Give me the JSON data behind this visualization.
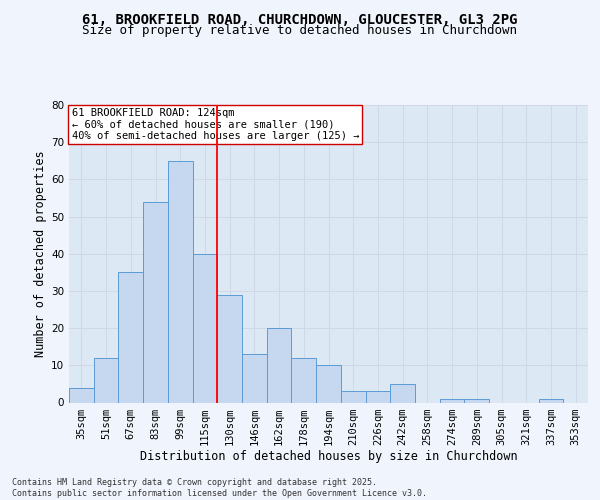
{
  "title_line1": "61, BROOKFIELD ROAD, CHURCHDOWN, GLOUCESTER, GL3 2PG",
  "title_line2": "Size of property relative to detached houses in Churchdown",
  "xlabel": "Distribution of detached houses by size in Churchdown",
  "ylabel": "Number of detached properties",
  "categories": [
    "35sqm",
    "51sqm",
    "67sqm",
    "83sqm",
    "99sqm",
    "115sqm",
    "130sqm",
    "146sqm",
    "162sqm",
    "178sqm",
    "194sqm",
    "210sqm",
    "226sqm",
    "242sqm",
    "258sqm",
    "274sqm",
    "289sqm",
    "305sqm",
    "321sqm",
    "337sqm",
    "353sqm"
  ],
  "values": [
    4,
    12,
    35,
    54,
    65,
    40,
    29,
    13,
    20,
    12,
    10,
    3,
    3,
    5,
    0,
    1,
    1,
    0,
    0,
    1,
    0
  ],
  "bar_color": "#c5d8f0",
  "bar_edge_color": "#5b9bd5",
  "grid_color": "#d0d8e8",
  "background_color": "#dde8f5",
  "red_line_x": 5.5,
  "annotation_text": "61 BROOKFIELD ROAD: 124sqm\n← 60% of detached houses are smaller (190)\n40% of semi-detached houses are larger (125) →",
  "annotation_box_color": "#ffffff",
  "annotation_box_edge": "#cc0000",
  "ylim": [
    0,
    80
  ],
  "yticks": [
    0,
    10,
    20,
    30,
    40,
    50,
    60,
    70,
    80
  ],
  "footer_text": "Contains HM Land Registry data © Crown copyright and database right 2025.\nContains public sector information licensed under the Open Government Licence v3.0.",
  "title_fontsize": 10,
  "subtitle_fontsize": 9,
  "axis_label_fontsize": 8.5,
  "tick_fontsize": 7.5,
  "annotation_fontsize": 7.5,
  "fig_bg": "#f0f4fc"
}
